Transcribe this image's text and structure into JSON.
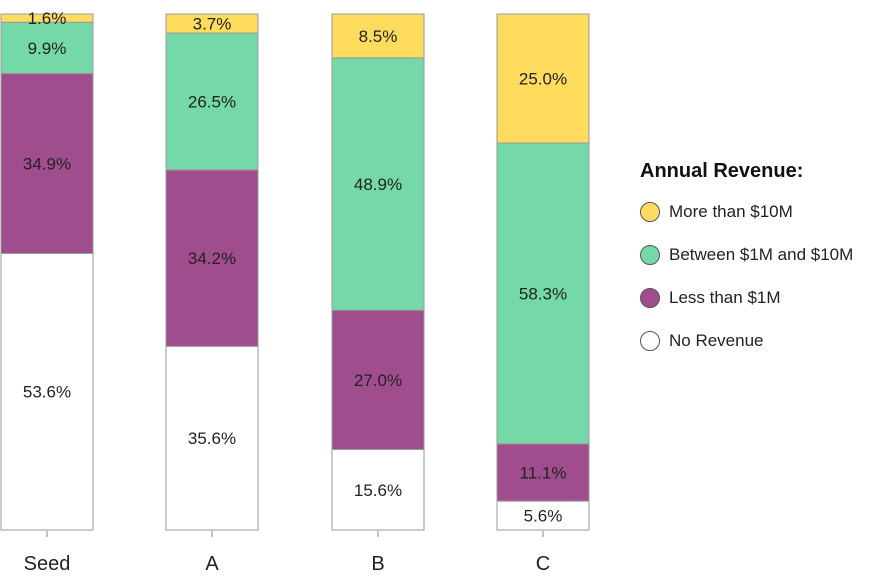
{
  "chart_data": {
    "type": "bar",
    "stacked": true,
    "percent": true,
    "categories": [
      "Seed",
      "A",
      "B",
      "C"
    ],
    "series": [
      {
        "name": "No Revenue",
        "color": "#ffffff",
        "values": [
          53.6,
          35.6,
          15.6,
          5.6
        ]
      },
      {
        "name": "Less than $1M",
        "color": "#a04d8e",
        "values": [
          34.9,
          34.2,
          27.0,
          11.1
        ]
      },
      {
        "name": "Between $1M and $10M",
        "color": "#74d9a7",
        "values": [
          9.9,
          26.5,
          48.9,
          58.3
        ]
      },
      {
        "name": "More than $10M",
        "color": "#ffdc5e",
        "values": [
          1.6,
          3.7,
          8.5,
          25.0
        ]
      }
    ],
    "value_labels": [
      [
        "53.6%",
        "35.6%",
        "15.6%",
        "5.6%"
      ],
      [
        "34.9%",
        "34.2%",
        "27.0%",
        "11.1%"
      ],
      [
        "9.9%",
        "26.5%",
        "48.9%",
        "58.3%"
      ],
      [
        "1.6%",
        "3.7%",
        "8.5%",
        "25.0%"
      ]
    ],
    "ylim": [
      0,
      100
    ],
    "legend_position": "right"
  },
  "legend": {
    "title": "Annual Revenue:",
    "items": [
      {
        "label": "More than $10M",
        "color": "#ffdc5e"
      },
      {
        "label": "Between $1M and $10M",
        "color": "#74d9a7"
      },
      {
        "label": "Less than $1M",
        "color": "#a04d8e"
      },
      {
        "label": "No Revenue",
        "color": "#ffffff"
      }
    ]
  }
}
